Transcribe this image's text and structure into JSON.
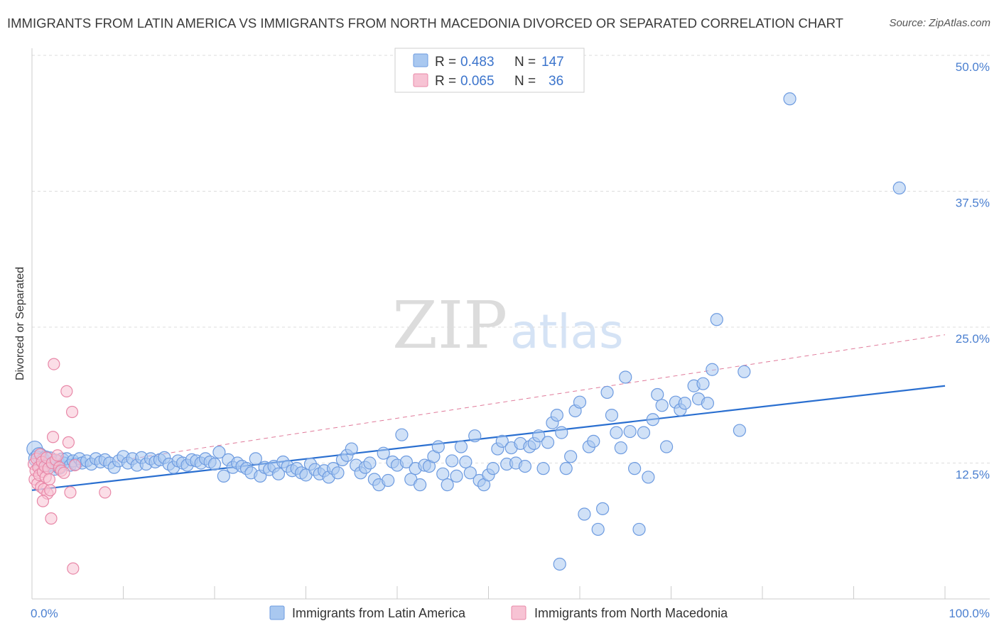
{
  "title": "IMMIGRANTS FROM LATIN AMERICA VS IMMIGRANTS FROM NORTH MACEDONIA DIVORCED OR SEPARATED CORRELATION CHART",
  "source": "Source: ZipAtlas.com",
  "watermark": {
    "zip": "ZIP",
    "atlas": "atlas"
  },
  "legend_top": [
    {
      "r_label": "R =",
      "r_value": "0.483",
      "n_label": "N =",
      "n_value": "147"
    },
    {
      "r_label": "R =",
      "r_value": "0.065",
      "n_label": "N =",
      "n_value": "36"
    }
  ],
  "colors": {
    "blue_fill": "#a9c8f0",
    "blue_stroke": "#6d9be0",
    "blue_line": "#2a6fd0",
    "pink_fill": "#f7c3d4",
    "pink_stroke": "#e888a8",
    "pink_line": "#e07a9a",
    "grid": "#dddddd",
    "axis_text": "#4a7fd0"
  },
  "chart_data": {
    "type": "scatter",
    "title": "IMMIGRANTS FROM LATIN AMERICA VS IMMIGRANTS FROM NORTH MACEDONIA DIVORCED OR SEPARATED CORRELATION CHART",
    "xlabel": "",
    "ylabel": "Divorced or Separated",
    "xlim": [
      0,
      100
    ],
    "ylim": [
      0,
      50
    ],
    "x_tick_labels": [
      "0.0%",
      "100.0%"
    ],
    "y_ticks": [
      12.5,
      25.0,
      37.5,
      50.0
    ],
    "y_tick_labels": [
      "12.5%",
      "25.0%",
      "37.5%",
      "50.0%"
    ],
    "grid": "horizontal dashed",
    "legend_position": "top-center",
    "series": [
      {
        "name": "Immigrants from Latin America",
        "color": "#a9c8f0",
        "R": 0.483,
        "N": 147,
        "trend": {
          "x": [
            0,
            100
          ],
          "y": [
            10.0,
            19.6
          ],
          "style": "solid"
        },
        "points": [
          [
            0.3,
            13.8
          ],
          [
            0.5,
            12.9
          ],
          [
            0.8,
            13.2
          ],
          [
            1.0,
            12.2
          ],
          [
            1.2,
            12.8
          ],
          [
            1.5,
            13.0
          ],
          [
            1.8,
            12.3
          ],
          [
            2.0,
            12.9
          ],
          [
            2.3,
            12.4
          ],
          [
            2.5,
            12.0
          ],
          [
            2.8,
            12.6
          ],
          [
            3.0,
            12.1
          ],
          [
            3.3,
            12.8
          ],
          [
            3.5,
            12.5
          ],
          [
            3.8,
            12.9
          ],
          [
            4.2,
            12.3
          ],
          [
            4.5,
            12.7
          ],
          [
            4.8,
            12.4
          ],
          [
            5.2,
            12.9
          ],
          [
            5.5,
            12.5
          ],
          [
            6.0,
            12.7
          ],
          [
            6.5,
            12.4
          ],
          [
            7.0,
            12.9
          ],
          [
            7.5,
            12.6
          ],
          [
            8.0,
            12.8
          ],
          [
            8.5,
            12.5
          ],
          [
            9.0,
            12.1
          ],
          [
            9.5,
            12.7
          ],
          [
            10.0,
            13.1
          ],
          [
            10.5,
            12.5
          ],
          [
            11.0,
            12.9
          ],
          [
            11.5,
            12.3
          ],
          [
            12.0,
            13.0
          ],
          [
            12.5,
            12.4
          ],
          [
            13.0,
            12.9
          ],
          [
            13.5,
            12.6
          ],
          [
            14.0,
            12.8
          ],
          [
            14.5,
            13.0
          ],
          [
            15.0,
            12.4
          ],
          [
            15.5,
            12.1
          ],
          [
            16.0,
            12.7
          ],
          [
            16.5,
            12.5
          ],
          [
            17.0,
            12.3
          ],
          [
            17.5,
            12.8
          ],
          [
            18.0,
            12.7
          ],
          [
            18.5,
            12.5
          ],
          [
            19.0,
            12.9
          ],
          [
            19.5,
            12.6
          ],
          [
            20.0,
            12.4
          ],
          [
            20.5,
            13.5
          ],
          [
            21.0,
            11.3
          ],
          [
            21.5,
            12.8
          ],
          [
            22.0,
            12.1
          ],
          [
            22.5,
            12.5
          ],
          [
            23.0,
            12.2
          ],
          [
            23.5,
            12.0
          ],
          [
            24.0,
            11.6
          ],
          [
            24.5,
            12.9
          ],
          [
            25.0,
            11.3
          ],
          [
            25.5,
            12.1
          ],
          [
            26.0,
            11.9
          ],
          [
            26.5,
            12.2
          ],
          [
            27.0,
            11.5
          ],
          [
            27.5,
            12.6
          ],
          [
            28.0,
            12.2
          ],
          [
            28.5,
            11.8
          ],
          [
            29.0,
            12.0
          ],
          [
            29.5,
            11.6
          ],
          [
            30.0,
            11.4
          ],
          [
            30.5,
            12.4
          ],
          [
            31.0,
            11.9
          ],
          [
            31.5,
            11.5
          ],
          [
            32.0,
            11.8
          ],
          [
            32.5,
            11.2
          ],
          [
            33.0,
            12.0
          ],
          [
            33.5,
            11.6
          ],
          [
            34.0,
            12.8
          ],
          [
            34.5,
            13.2
          ],
          [
            35.0,
            13.8
          ],
          [
            35.5,
            12.3
          ],
          [
            36.0,
            11.6
          ],
          [
            36.5,
            12.1
          ],
          [
            37.0,
            12.5
          ],
          [
            37.5,
            11.0
          ],
          [
            38.0,
            10.5
          ],
          [
            38.5,
            13.4
          ],
          [
            39.0,
            10.9
          ],
          [
            39.5,
            12.6
          ],
          [
            40.0,
            12.3
          ],
          [
            40.5,
            15.1
          ],
          [
            41.0,
            12.6
          ],
          [
            41.5,
            11.0
          ],
          [
            42.0,
            12.0
          ],
          [
            42.5,
            10.5
          ],
          [
            43.0,
            12.3
          ],
          [
            43.5,
            12.2
          ],
          [
            44.0,
            13.1
          ],
          [
            44.5,
            14.0
          ],
          [
            45.0,
            11.5
          ],
          [
            45.5,
            10.5
          ],
          [
            46.0,
            12.7
          ],
          [
            46.5,
            11.3
          ],
          [
            47.0,
            14.0
          ],
          [
            47.5,
            12.6
          ],
          [
            48.0,
            11.6
          ],
          [
            48.5,
            15.0
          ],
          [
            49.0,
            10.9
          ],
          [
            49.5,
            10.5
          ],
          [
            50.0,
            11.4
          ],
          [
            50.5,
            12.0
          ],
          [
            51.0,
            13.8
          ],
          [
            51.5,
            14.5
          ],
          [
            52.0,
            12.4
          ],
          [
            52.5,
            13.9
          ],
          [
            53.0,
            12.5
          ],
          [
            53.5,
            14.3
          ],
          [
            54.0,
            12.2
          ],
          [
            54.5,
            14.0
          ],
          [
            55.0,
            14.3
          ],
          [
            55.5,
            15.0
          ],
          [
            56.0,
            12.0
          ],
          [
            56.5,
            14.4
          ],
          [
            57.0,
            16.2
          ],
          [
            57.5,
            16.9
          ],
          [
            58.0,
            15.3
          ],
          [
            58.5,
            12.0
          ],
          [
            59.0,
            13.1
          ],
          [
            59.5,
            17.3
          ],
          [
            60.0,
            18.1
          ],
          [
            60.5,
            7.8
          ],
          [
            61.0,
            14.0
          ],
          [
            61.5,
            14.5
          ],
          [
            62.0,
            6.4
          ],
          [
            62.5,
            8.3
          ],
          [
            63.0,
            19.0
          ],
          [
            63.5,
            16.9
          ],
          [
            64.0,
            15.3
          ],
          [
            64.5,
            13.9
          ],
          [
            65.0,
            20.4
          ],
          [
            65.5,
            15.4
          ],
          [
            66.0,
            12.0
          ],
          [
            66.5,
            6.4
          ],
          [
            67.0,
            15.3
          ],
          [
            67.5,
            11.2
          ],
          [
            68.0,
            16.5
          ],
          [
            68.5,
            18.8
          ],
          [
            69.0,
            17.8
          ],
          [
            69.5,
            14.0
          ],
          [
            70.5,
            18.1
          ],
          [
            71.0,
            17.4
          ],
          [
            71.5,
            18.0
          ],
          [
            72.5,
            19.6
          ],
          [
            73.0,
            18.4
          ],
          [
            73.5,
            19.8
          ],
          [
            74.0,
            18.0
          ],
          [
            74.5,
            21.1
          ],
          [
            75.0,
            25.7
          ],
          [
            77.5,
            15.5
          ],
          [
            78.0,
            20.9
          ],
          [
            83.0,
            46.0
          ],
          [
            95.0,
            37.8
          ],
          [
            57.8,
            3.2
          ]
        ]
      },
      {
        "name": "Immigrants from North Macedonia",
        "color": "#f7c3d4",
        "R": 0.065,
        "N": 36,
        "trend": {
          "x": [
            0,
            100
          ],
          "y": [
            11.5,
            24.3
          ],
          "style": "dashed"
        },
        "points": [
          [
            0.2,
            12.4
          ],
          [
            0.3,
            11.0
          ],
          [
            0.4,
            11.8
          ],
          [
            0.5,
            12.9
          ],
          [
            0.6,
            10.6
          ],
          [
            0.7,
            12.1
          ],
          [
            0.8,
            11.4
          ],
          [
            0.9,
            13.3
          ],
          [
            1.0,
            10.3
          ],
          [
            1.1,
            12.6
          ],
          [
            1.2,
            11.7
          ],
          [
            1.3,
            10.1
          ],
          [
            1.4,
            12.2
          ],
          [
            1.5,
            11.2
          ],
          [
            1.6,
            13.0
          ],
          [
            1.7,
            9.7
          ],
          [
            1.8,
            12.0
          ],
          [
            1.9,
            11.0
          ],
          [
            2.0,
            10.0
          ],
          [
            2.1,
            7.4
          ],
          [
            2.2,
            12.5
          ],
          [
            2.3,
            14.9
          ],
          [
            2.4,
            21.6
          ],
          [
            2.6,
            12.8
          ],
          [
            2.8,
            13.2
          ],
          [
            3.0,
            12.1
          ],
          [
            3.2,
            11.8
          ],
          [
            3.5,
            11.6
          ],
          [
            3.8,
            19.1
          ],
          [
            4.0,
            14.4
          ],
          [
            4.2,
            9.8
          ],
          [
            4.4,
            17.2
          ],
          [
            4.5,
            2.8
          ],
          [
            4.7,
            12.3
          ],
          [
            8.0,
            9.8
          ],
          [
            1.2,
            9.0
          ]
        ]
      }
    ]
  },
  "legend_bottom": [
    {
      "label": "Immigrants from Latin America"
    },
    {
      "label": "Immigrants from North Macedonia"
    }
  ]
}
